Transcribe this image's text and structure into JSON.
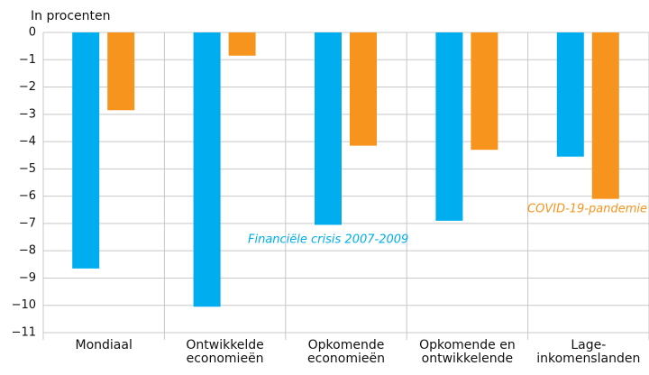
{
  "chart_data": {
    "type": "bar",
    "ylabel": "In procenten",
    "categories": [
      "Mondiaal",
      "Ontwikkelde\neconomieën",
      "Opkomende\neconomieën",
      "Opkomende en\nontwikkelende",
      "Lage-\ninkomenslanden"
    ],
    "series": [
      {
        "name": "Financiële crisis 2007-2009",
        "color": "#00aeef",
        "values": [
          -8.65,
          -10.05,
          -7.05,
          -6.9,
          -4.55
        ]
      },
      {
        "name": "COVID-19-pandemie",
        "color": "#f7941d",
        "values": [
          -2.85,
          -0.85,
          -4.15,
          -4.3,
          -6.1
        ]
      }
    ],
    "ylim": [
      -11,
      0
    ],
    "yticks": [
      0,
      {
        "value": -1,
        "label": "−1"
      },
      {
        "value": -2,
        "label": "−2"
      },
      {
        "value": -3,
        "label": "−3"
      },
      {
        "value": -4,
        "label": "−4"
      },
      {
        "value": -5,
        "label": "−5"
      },
      {
        "value": -6,
        "label": "−6"
      },
      {
        "value": -7,
        "label": "−7"
      },
      {
        "value": -8,
        "label": "−8"
      },
      {
        "value": -9,
        "label": "−9"
      },
      {
        "value": -10,
        "label": "−10"
      },
      {
        "value": -11,
        "label": "−11"
      }
    ],
    "grid": true
  }
}
